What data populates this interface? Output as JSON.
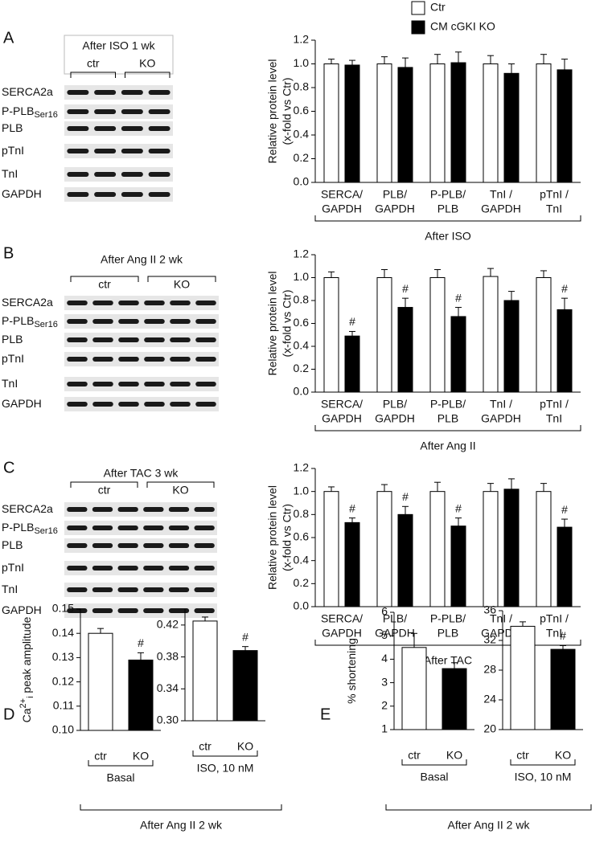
{
  "legend": [
    {
      "name": "Ctr",
      "color": "#ffffff"
    },
    {
      "name": "CM cGKI KO",
      "color": "#000000"
    }
  ],
  "blots": [
    {
      "letter": "A",
      "title": "After ISO 1 wk",
      "groups": [
        "ctr",
        "KO"
      ],
      "rows": [
        {
          "label": "SERCA2a"
        },
        {
          "label": "P-PLB",
          "sub": "Ser16"
        },
        {
          "label": "PLB"
        },
        {
          "label": "pTnI"
        },
        {
          "label": "TnI"
        },
        {
          "label": "GAPDH"
        }
      ]
    },
    {
      "letter": "B",
      "title": "After Ang II 2 wk",
      "groups": [
        "ctr",
        "KO"
      ],
      "rows": [
        {
          "label": "SERCA2a"
        },
        {
          "label": "P-PLB",
          "sub": "Ser16"
        },
        {
          "label": "PLB"
        },
        {
          "label": "pTnI"
        },
        {
          "label": "TnI"
        },
        {
          "label": "GAPDH"
        }
      ]
    },
    {
      "letter": "C",
      "title": "After TAC 3 wk",
      "groups": [
        "ctr",
        "KO"
      ],
      "rows": [
        {
          "label": "SERCA2a"
        },
        {
          "label": "P-PLB",
          "sub": "Ser16"
        },
        {
          "label": "PLB"
        },
        {
          "label": "pTnI"
        },
        {
          "label": "TnI"
        },
        {
          "label": "GAPDH"
        }
      ]
    }
  ],
  "panels": [
    {
      "letter": "D",
      "footer": "After Ang II 2 wk"
    },
    {
      "letter": "E",
      "footer": "After Ang II 2 wk"
    }
  ],
  "chart_data": [
    {
      "type": "bar",
      "ylabel": [
        "Relative protein level",
        "(x-fold vs Ctr)"
      ],
      "xlabel": "After ISO",
      "categories": [
        [
          "SERCA/",
          "GAPDH"
        ],
        [
          "PLB/",
          "GAPDH"
        ],
        [
          "P-PLB/",
          "PLB"
        ],
        [
          "TnI /",
          "GAPDH"
        ],
        [
          "pTnI /",
          "TnI"
        ]
      ],
      "series": [
        {
          "color": "#ffffff",
          "values": [
            1.0,
            1.0,
            1.0,
            1.0,
            1.0
          ],
          "errors": [
            0.04,
            0.06,
            0.08,
            0.07,
            0.08
          ]
        },
        {
          "color": "#000000",
          "values": [
            0.99,
            0.97,
            1.01,
            0.92,
            0.95
          ],
          "errors": [
            0.04,
            0.08,
            0.09,
            0.08,
            0.09
          ]
        }
      ],
      "ylim": [
        0,
        1.2
      ],
      "yticks": [
        {
          "value": 0,
          "label": "0.0"
        },
        0.2,
        0.4,
        0.6,
        0.8,
        {
          "value": 1,
          "label": "1.0"
        },
        1.2
      ]
    },
    {
      "type": "bar",
      "ylabel": [
        "Relative protein level",
        "(x-fold vs Ctr)"
      ],
      "xlabel": "After Ang II",
      "categories": [
        [
          "SERCA/",
          "GAPDH"
        ],
        [
          "PLB/",
          "GAPDH"
        ],
        [
          "P-PLB/",
          "PLB"
        ],
        [
          "TnI /",
          "GAPDH"
        ],
        [
          "pTnI /",
          "TnI"
        ]
      ],
      "series": [
        {
          "color": "#ffffff",
          "values": [
            1.0,
            1.0,
            1.0,
            1.01,
            1.0
          ],
          "errors": [
            0.05,
            0.07,
            0.07,
            0.07,
            0.06
          ]
        },
        {
          "color": "#000000",
          "values": [
            0.49,
            0.74,
            0.66,
            0.8,
            0.72
          ],
          "errors": [
            0.04,
            0.08,
            0.08,
            0.08,
            0.1
          ],
          "annotations": [
            "#",
            "#",
            "#",
            null,
            "#"
          ]
        }
      ],
      "ylim": [
        0,
        1.2
      ],
      "yticks": [
        {
          "value": 0,
          "label": "0.0"
        },
        0.2,
        0.4,
        0.6,
        0.8,
        {
          "value": 1,
          "label": "1.0"
        },
        1.2
      ]
    },
    {
      "type": "bar",
      "ylabel": [
        "Relative protein level",
        "(x-fold vs Ctr)"
      ],
      "xlabel": "After TAC",
      "categories": [
        [
          "SERCA/",
          "GAPDH"
        ],
        [
          "PLB/",
          "GAPDH"
        ],
        [
          "P-PLB/",
          "PLB"
        ],
        [
          "TnI /",
          "GAPDH"
        ],
        [
          "pTnI /",
          "TnI"
        ]
      ],
      "series": [
        {
          "color": "#ffffff",
          "values": [
            1.0,
            1.0,
            1.0,
            1.0,
            1.0
          ],
          "errors": [
            0.04,
            0.06,
            0.08,
            0.07,
            0.07
          ]
        },
        {
          "color": "#000000",
          "values": [
            0.73,
            0.8,
            0.7,
            1.02,
            0.69
          ],
          "errors": [
            0.04,
            0.07,
            0.07,
            0.09,
            0.07
          ],
          "annotations": [
            "#",
            "#",
            "#",
            null,
            "#"
          ]
        }
      ],
      "ylim": [
        0,
        1.2
      ],
      "yticks": [
        {
          "value": 0,
          "label": "0.0"
        },
        0.2,
        0.4,
        0.6,
        0.8,
        {
          "value": 1,
          "label": "1.0"
        },
        1.2
      ]
    },
    {
      "type": "bar",
      "ylabel": [
        "Ca",
        "2+",
        "i",
        " peak amplitude"
      ],
      "group": "Basal",
      "categories": [
        "ctr",
        "KO"
      ],
      "values": [
        0.14,
        0.129
      ],
      "errors": [
        0.002,
        0.003
      ],
      "colors": [
        "#ffffff",
        "#000000"
      ],
      "annotations": [
        null,
        "#"
      ],
      "ylim": [
        0.1,
        0.15
      ],
      "yticks": [
        {
          "value": 0.1,
          "label": "0.10"
        },
        0.11,
        0.12,
        0.13,
        0.14,
        0.15
      ]
    },
    {
      "type": "bar",
      "group": "ISO, 10 nM",
      "categories": [
        "ctr",
        "KO"
      ],
      "values": [
        0.425,
        0.388
      ],
      "errors": [
        0.005,
        0.005
      ],
      "colors": [
        "#ffffff",
        "#000000"
      ],
      "annotations": [
        null,
        "#"
      ],
      "ylim": [
        0.3,
        0.44
      ],
      "yticks": [
        {
          "value": 0.3,
          "label": "0.30"
        },
        0.34,
        0.38,
        0.42
      ]
    },
    {
      "type": "bar",
      "ylabel": [
        "% shortening"
      ],
      "group": "Basal",
      "categories": [
        "ctr",
        "KO"
      ],
      "values": [
        4.5,
        3.6
      ],
      "errors": [
        0.6,
        0.25
      ],
      "colors": [
        "#ffffff",
        "#000000"
      ],
      "ylim": [
        1,
        6
      ],
      "yticks": [
        1,
        2,
        3,
        4,
        5,
        6
      ]
    },
    {
      "type": "bar",
      "group": "ISO, 10 nM",
      "categories": [
        "ctr",
        "KO"
      ],
      "values": [
        33.9,
        30.8
      ],
      "errors": [
        0.6,
        0.5
      ],
      "colors": [
        "#ffffff",
        "#000000"
      ],
      "annotations": [
        null,
        "#"
      ],
      "ylim": [
        20,
        36
      ],
      "yticks": [
        20,
        24,
        28,
        32,
        36
      ]
    }
  ]
}
